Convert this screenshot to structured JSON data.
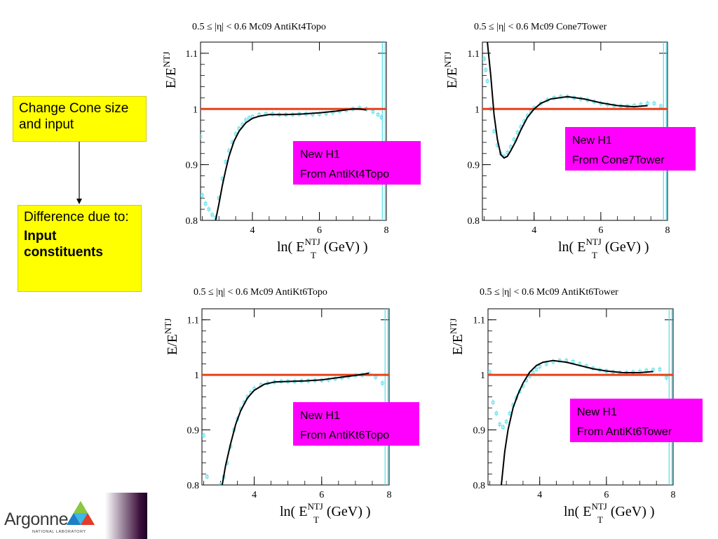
{
  "callouts": {
    "top": "Change Cone size and input",
    "bottom_line1": "Difference due to:",
    "bottom_line2": "Input constituents"
  },
  "logo": {
    "name": "Argonne",
    "subtitle": "NATIONAL LABORATORY"
  },
  "colors": {
    "label_bg": "#ff00ff",
    "callout_bg": "#ffff00",
    "reference_line": "#e8401c",
    "fit_curve": "#000000",
    "data_points": "#55dde8"
  },
  "chart_data": [
    {
      "type": "scatter",
      "title": "0.5 ≤ |η| < 0.6   Mc09 AntiKt4Topo",
      "ylabel": "E/E^NTJ",
      "xlabel": "ln( E_T^NTJ (GeV) )",
      "xlim": [
        2.45,
        8.0
      ],
      "ylim": [
        0.8,
        1.12
      ],
      "xticks": [
        4,
        6,
        8
      ],
      "yticks": [
        0.8,
        0.9,
        1,
        1.1
      ],
      "reference_y": 1.0,
      "label_box": [
        "New H1",
        "From AntiKt4Topo"
      ],
      "fit": {
        "x": [
          2.9,
          3.0,
          3.1,
          3.2,
          3.3,
          3.45,
          3.6,
          3.8,
          4.0,
          4.2,
          4.5,
          5.0,
          5.5,
          6.0,
          6.5,
          7.0,
          7.2,
          7.4
        ],
        "y": [
          0.8,
          0.83,
          0.862,
          0.89,
          0.915,
          0.942,
          0.96,
          0.975,
          0.983,
          0.987,
          0.99,
          0.99,
          0.991,
          0.993,
          0.996,
          1.0,
          1.0,
          0.998
        ]
      },
      "points": {
        "x": [
          2.45,
          2.5,
          2.6,
          2.7,
          2.8,
          2.9,
          3.0,
          3.1,
          3.2,
          3.3,
          3.4,
          3.5,
          3.6,
          3.7,
          3.8,
          3.9,
          4.0,
          4.2,
          4.4,
          4.6,
          4.8,
          5.0,
          5.2,
          5.4,
          5.6,
          5.8,
          6.0,
          6.2,
          6.4,
          6.6,
          6.8,
          7.0,
          7.2,
          7.4,
          7.6,
          7.75,
          7.85
        ],
        "y": [
          0.95,
          0.845,
          0.83,
          0.82,
          0.81,
          0.805,
          0.84,
          0.875,
          0.905,
          0.925,
          0.94,
          0.955,
          0.965,
          0.972,
          0.98,
          0.984,
          0.986,
          0.99,
          0.991,
          0.991,
          0.99,
          0.99,
          0.99,
          0.991,
          0.991,
          0.99,
          0.991,
          0.992,
          0.994,
          0.996,
          0.998,
          1.0,
          1.002,
          1.0,
          0.995,
          0.99,
          0.985
        ]
      }
    },
    {
      "type": "scatter",
      "title": "0.5 ≤ |η| < 0.6   Mc09 Cone7Tower",
      "ylabel": "E/E^NTJ",
      "xlabel": "ln( E_T^NTJ (GeV) )",
      "xlim": [
        2.45,
        8.0
      ],
      "ylim": [
        0.8,
        1.12
      ],
      "xticks": [
        4,
        6,
        8
      ],
      "yticks": [
        0.8,
        0.9,
        1,
        1.1
      ],
      "reference_y": 1.0,
      "label_box": [
        "New H1",
        "From Cone7Tower"
      ],
      "fit": {
        "x": [
          2.6,
          2.7,
          2.8,
          2.9,
          3.0,
          3.1,
          3.2,
          3.3,
          3.45,
          3.6,
          3.8,
          4.0,
          4.2,
          4.5,
          5.0,
          5.5,
          6.0,
          6.5,
          7.0,
          7.4
        ],
        "y": [
          1.12,
          1.06,
          0.99,
          0.945,
          0.918,
          0.912,
          0.915,
          0.925,
          0.942,
          0.962,
          0.985,
          1.0,
          1.01,
          1.018,
          1.022,
          1.018,
          1.011,
          1.006,
          1.004,
          1.006
        ]
      },
      "points": {
        "x": [
          2.5,
          2.55,
          2.6,
          2.7,
          2.8,
          2.9,
          3.0,
          3.1,
          3.2,
          3.3,
          3.4,
          3.5,
          3.6,
          3.7,
          3.8,
          3.9,
          4.0,
          4.2,
          4.4,
          4.6,
          4.8,
          5.0,
          5.2,
          5.4,
          5.6,
          5.8,
          6.0,
          6.2,
          6.4,
          6.6,
          6.8,
          7.0,
          7.2,
          7.4,
          7.6,
          7.8
        ],
        "y": [
          1.09,
          1.07,
          1.05,
          1.0,
          0.96,
          0.935,
          0.92,
          0.915,
          0.922,
          0.932,
          0.945,
          0.958,
          0.968,
          0.978,
          0.988,
          0.996,
          1.002,
          1.01,
          1.016,
          1.02,
          1.022,
          1.022,
          1.02,
          1.018,
          1.016,
          1.013,
          1.01,
          1.008,
          1.006,
          1.005,
          1.005,
          1.006,
          1.008,
          1.01,
          1.01,
          1.005
        ]
      }
    },
    {
      "type": "scatter",
      "title": "0.5 ≤ |η| < 0.6   Mc09 AntiKt6Topo",
      "ylabel": "E/E^NTJ",
      "xlabel": "ln( E_T^NTJ (GeV) )",
      "xlim": [
        2.45,
        8.0
      ],
      "ylim": [
        0.8,
        1.12
      ],
      "xticks": [
        4,
        6,
        8
      ],
      "yticks": [
        0.8,
        0.9,
        1,
        1.1
      ],
      "reference_y": 1.0,
      "label_box": [
        "New H1",
        "From AntiKt6Topo"
      ],
      "fit": {
        "x": [
          3.05,
          3.15,
          3.3,
          3.45,
          3.6,
          3.8,
          4.0,
          4.3,
          4.6,
          5.0,
          5.5,
          6.0,
          6.5,
          7.0,
          7.4
        ],
        "y": [
          0.8,
          0.835,
          0.875,
          0.91,
          0.935,
          0.958,
          0.972,
          0.983,
          0.987,
          0.988,
          0.989,
          0.991,
          0.995,
          0.999,
          1.003
        ]
      },
      "points": {
        "x": [
          2.5,
          2.6,
          3.0,
          3.1,
          3.2,
          3.3,
          3.4,
          3.5,
          3.6,
          3.7,
          3.8,
          3.9,
          4.0,
          4.2,
          4.4,
          4.6,
          4.8,
          5.0,
          5.2,
          5.4,
          5.6,
          5.8,
          6.0,
          6.2,
          6.4,
          6.6,
          6.8,
          7.0,
          7.2,
          7.4,
          7.6,
          7.8
        ],
        "y": [
          0.89,
          0.815,
          0.8,
          0.815,
          0.84,
          0.87,
          0.9,
          0.92,
          0.938,
          0.95,
          0.96,
          0.968,
          0.975,
          0.982,
          0.985,
          0.987,
          0.988,
          0.988,
          0.988,
          0.989,
          0.989,
          0.99,
          0.99,
          0.991,
          0.993,
          0.995,
          0.997,
          0.999,
          1.0,
          1.002,
          0.996,
          0.985
        ]
      }
    },
    {
      "type": "scatter",
      "title": "0.5 ≤ |η| < 0.6   Mc09 AntiKt6Tower",
      "ylabel": "E/E^NTJ",
      "xlabel": "ln( E_T^NTJ (GeV) )",
      "xlim": [
        2.45,
        8.0
      ],
      "ylim": [
        0.8,
        1.12
      ],
      "xticks": [
        4,
        6,
        8
      ],
      "yticks": [
        0.8,
        0.9,
        1,
        1.1
      ],
      "reference_y": 1.0,
      "label_box": [
        "New H1",
        "From AntiKt6Tower"
      ],
      "fit": {
        "x": [
          2.85,
          2.95,
          3.05,
          3.2,
          3.35,
          3.5,
          3.7,
          3.9,
          4.1,
          4.4,
          4.8,
          5.2,
          5.6,
          6.0,
          6.5,
          7.0,
          7.4
        ],
        "y": [
          0.8,
          0.86,
          0.9,
          0.94,
          0.965,
          0.985,
          1.005,
          1.017,
          1.023,
          1.026,
          1.023,
          1.017,
          1.011,
          1.007,
          1.004,
          1.004,
          1.006
        ]
      },
      "points": {
        "x": [
          2.5,
          2.6,
          2.7,
          2.8,
          2.9,
          3.0,
          3.1,
          3.2,
          3.3,
          3.4,
          3.5,
          3.6,
          3.7,
          3.8,
          3.9,
          4.0,
          4.2,
          4.4,
          4.6,
          4.8,
          5.0,
          5.2,
          5.4,
          5.6,
          5.8,
          6.0,
          6.2,
          6.4,
          6.6,
          6.8,
          7.0,
          7.2,
          7.4,
          7.6,
          7.8
        ],
        "y": [
          1.005,
          0.95,
          0.93,
          0.91,
          0.905,
          0.915,
          0.93,
          0.945,
          0.958,
          0.97,
          0.98,
          0.99,
          0.998,
          1.004,
          1.01,
          1.015,
          1.02,
          1.024,
          1.026,
          1.026,
          1.024,
          1.02,
          1.016,
          1.012,
          1.009,
          1.007,
          1.005,
          1.004,
          1.004,
          1.005,
          1.006,
          1.008,
          1.009,
          1.01,
          0.995
        ]
      }
    }
  ]
}
